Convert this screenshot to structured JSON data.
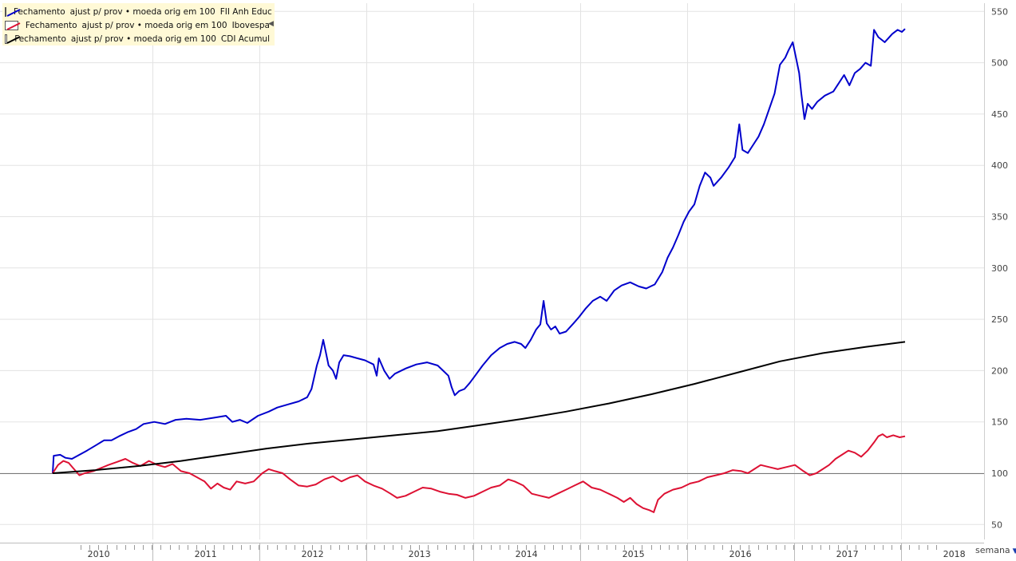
{
  "legend": {
    "items": [
      {
        "f1": "Fechamento",
        "f2": "ajust p/ prov • moeda orig em 100",
        "name": "FII Anh Educ",
        "color": "#0000cc"
      },
      {
        "f1": "Fechamento",
        "f2": "ajust p/ prov • moeda orig em 100",
        "name": "Ibovespa",
        "color": "#dd1133"
      },
      {
        "f1": "Fechamento",
        "f2": "ajust p/ prov • moeda orig em 100",
        "name": "CDI Acumul",
        "color": "#000000"
      }
    ],
    "collapse_icon": "triangle-left-icon"
  },
  "period": {
    "label": "semana",
    "icon": "triangle-down-icon"
  },
  "chart_data": {
    "type": "line",
    "x_unit": "year (decimal)",
    "xlim": [
      2009.55,
      2018.8
    ],
    "ylim": [
      35,
      555
    ],
    "yticks": [
      50,
      100,
      150,
      200,
      250,
      300,
      350,
      400,
      450,
      500,
      550
    ],
    "baseline": 100,
    "grid": true,
    "x_labels": [
      {
        "label": "2010",
        "x": 2009.83
      },
      {
        "label": "2011",
        "x": 2010.83
      },
      {
        "label": "2012",
        "x": 2011.83
      },
      {
        "label": "2013",
        "x": 2012.83
      },
      {
        "label": "2014",
        "x": 2013.83
      },
      {
        "label": "2015",
        "x": 2014.83
      },
      {
        "label": "2016",
        "x": 2015.83
      },
      {
        "label": "2017",
        "x": 2016.83
      },
      {
        "label": "2018",
        "x": 2017.83
      }
    ],
    "year_boundaries": [
      2010.33,
      2011.33,
      2012.33,
      2013.33,
      2014.33,
      2015.33,
      2016.33,
      2017.33
    ],
    "series": [
      {
        "name": "FII Anh Educ",
        "color": "#0000cc",
        "points": [
          [
            2009.4,
            100
          ],
          [
            2009.41,
            117
          ],
          [
            2009.47,
            118
          ],
          [
            2009.52,
            115
          ],
          [
            2009.58,
            114
          ],
          [
            2009.65,
            118
          ],
          [
            2009.72,
            122
          ],
          [
            2009.8,
            127
          ],
          [
            2009.88,
            132
          ],
          [
            2009.95,
            132
          ],
          [
            2010.02,
            136
          ],
          [
            2010.1,
            140
          ],
          [
            2010.18,
            143
          ],
          [
            2010.25,
            148
          ],
          [
            2010.35,
            150
          ],
          [
            2010.45,
            148
          ],
          [
            2010.55,
            152
          ],
          [
            2010.65,
            153
          ],
          [
            2010.78,
            152
          ],
          [
            2010.9,
            154
          ],
          [
            2011.02,
            156
          ],
          [
            2011.08,
            150
          ],
          [
            2011.15,
            152
          ],
          [
            2011.22,
            149
          ],
          [
            2011.32,
            156
          ],
          [
            2011.42,
            160
          ],
          [
            2011.5,
            164
          ],
          [
            2011.6,
            167
          ],
          [
            2011.7,
            170
          ],
          [
            2011.78,
            174
          ],
          [
            2011.82,
            182
          ],
          [
            2011.87,
            205
          ],
          [
            2011.9,
            215
          ],
          [
            2011.93,
            230
          ],
          [
            2011.95,
            220
          ],
          [
            2011.98,
            205
          ],
          [
            2012.02,
            200
          ],
          [
            2012.05,
            192
          ],
          [
            2012.08,
            208
          ],
          [
            2012.12,
            215
          ],
          [
            2012.18,
            214
          ],
          [
            2012.25,
            212
          ],
          [
            2012.32,
            210
          ],
          [
            2012.4,
            206
          ],
          [
            2012.43,
            195
          ],
          [
            2012.45,
            212
          ],
          [
            2012.5,
            200
          ],
          [
            2012.55,
            192
          ],
          [
            2012.6,
            197
          ],
          [
            2012.7,
            202
          ],
          [
            2012.8,
            206
          ],
          [
            2012.9,
            208
          ],
          [
            2013.0,
            205
          ],
          [
            2013.05,
            200
          ],
          [
            2013.1,
            195
          ],
          [
            2013.13,
            184
          ],
          [
            2013.16,
            176
          ],
          [
            2013.2,
            180
          ],
          [
            2013.25,
            182
          ],
          [
            2013.3,
            188
          ],
          [
            2013.35,
            195
          ],
          [
            2013.42,
            205
          ],
          [
            2013.5,
            215
          ],
          [
            2013.58,
            222
          ],
          [
            2013.65,
            226
          ],
          [
            2013.72,
            228
          ],
          [
            2013.78,
            226
          ],
          [
            2013.82,
            222
          ],
          [
            2013.87,
            230
          ],
          [
            2013.92,
            240
          ],
          [
            2013.96,
            245
          ],
          [
            2013.99,
            268
          ],
          [
            2014.02,
            246
          ],
          [
            2014.06,
            240
          ],
          [
            2014.1,
            243
          ],
          [
            2014.14,
            236
          ],
          [
            2014.2,
            238
          ],
          [
            2014.27,
            246
          ],
          [
            2014.32,
            252
          ],
          [
            2014.38,
            260
          ],
          [
            2014.45,
            268
          ],
          [
            2014.52,
            272
          ],
          [
            2014.58,
            268
          ],
          [
            2014.65,
            278
          ],
          [
            2014.72,
            283
          ],
          [
            2014.8,
            286
          ],
          [
            2014.88,
            282
          ],
          [
            2014.95,
            280
          ],
          [
            2015.03,
            284
          ],
          [
            2015.1,
            296
          ],
          [
            2015.15,
            310
          ],
          [
            2015.2,
            320
          ],
          [
            2015.25,
            332
          ],
          [
            2015.3,
            345
          ],
          [
            2015.35,
            355
          ],
          [
            2015.4,
            362
          ],
          [
            2015.45,
            380
          ],
          [
            2015.5,
            393
          ],
          [
            2015.55,
            388
          ],
          [
            2015.58,
            380
          ],
          [
            2015.65,
            388
          ],
          [
            2015.72,
            398
          ],
          [
            2015.78,
            408
          ],
          [
            2015.82,
            440
          ],
          [
            2015.85,
            415
          ],
          [
            2015.9,
            412
          ],
          [
            2015.95,
            420
          ],
          [
            2016.0,
            428
          ],
          [
            2016.05,
            440
          ],
          [
            2016.1,
            455
          ],
          [
            2016.15,
            470
          ],
          [
            2016.2,
            498
          ],
          [
            2016.25,
            505
          ],
          [
            2016.28,
            512
          ],
          [
            2016.32,
            520
          ],
          [
            2016.35,
            505
          ],
          [
            2016.38,
            490
          ],
          [
            2016.4,
            470
          ],
          [
            2016.43,
            445
          ],
          [
            2016.46,
            460
          ],
          [
            2016.5,
            455
          ],
          [
            2016.55,
            462
          ],
          [
            2016.62,
            468
          ],
          [
            2016.7,
            472
          ],
          [
            2016.75,
            480
          ],
          [
            2016.8,
            488
          ],
          [
            2016.85,
            478
          ],
          [
            2016.9,
            490
          ],
          [
            2016.95,
            494
          ],
          [
            2017.0,
            500
          ],
          [
            2017.05,
            497
          ],
          [
            2017.08,
            532
          ],
          [
            2017.12,
            525
          ],
          [
            2017.18,
            520
          ],
          [
            2017.25,
            528
          ],
          [
            2017.3,
            532
          ],
          [
            2017.34,
            530
          ],
          [
            2017.37,
            533
          ]
        ]
      },
      {
        "name": "Ibovespa",
        "color": "#dd1133",
        "points": [
          [
            2009.4,
            100
          ],
          [
            2009.45,
            108
          ],
          [
            2009.5,
            112
          ],
          [
            2009.55,
            110
          ],
          [
            2009.6,
            104
          ],
          [
            2009.65,
            98
          ],
          [
            2009.7,
            100
          ],
          [
            2009.78,
            102
          ],
          [
            2009.85,
            105
          ],
          [
            2009.92,
            108
          ],
          [
            2010.0,
            111
          ],
          [
            2010.08,
            114
          ],
          [
            2010.15,
            110
          ],
          [
            2010.22,
            107
          ],
          [
            2010.3,
            112
          ],
          [
            2010.38,
            108
          ],
          [
            2010.45,
            106
          ],
          [
            2010.52,
            109
          ],
          [
            2010.6,
            102
          ],
          [
            2010.68,
            100
          ],
          [
            2010.75,
            96
          ],
          [
            2010.82,
            92
          ],
          [
            2010.88,
            85
          ],
          [
            2010.94,
            90
          ],
          [
            2011.0,
            86
          ],
          [
            2011.06,
            84
          ],
          [
            2011.12,
            92
          ],
          [
            2011.2,
            90
          ],
          [
            2011.28,
            92
          ],
          [
            2011.36,
            100
          ],
          [
            2011.42,
            104
          ],
          [
            2011.48,
            102
          ],
          [
            2011.55,
            100
          ],
          [
            2011.62,
            94
          ],
          [
            2011.7,
            88
          ],
          [
            2011.78,
            87
          ],
          [
            2011.86,
            89
          ],
          [
            2011.94,
            94
          ],
          [
            2012.02,
            97
          ],
          [
            2012.1,
            92
          ],
          [
            2012.18,
            96
          ],
          [
            2012.25,
            98
          ],
          [
            2012.32,
            92
          ],
          [
            2012.4,
            88
          ],
          [
            2012.48,
            85
          ],
          [
            2012.56,
            80
          ],
          [
            2012.62,
            76
          ],
          [
            2012.7,
            78
          ],
          [
            2012.78,
            82
          ],
          [
            2012.86,
            86
          ],
          [
            2012.94,
            85
          ],
          [
            2013.02,
            82
          ],
          [
            2013.1,
            80
          ],
          [
            2013.18,
            79
          ],
          [
            2013.26,
            76
          ],
          [
            2013.34,
            78
          ],
          [
            2013.42,
            82
          ],
          [
            2013.5,
            86
          ],
          [
            2013.58,
            88
          ],
          [
            2013.66,
            94
          ],
          [
            2013.72,
            92
          ],
          [
            2013.8,
            88
          ],
          [
            2013.88,
            80
          ],
          [
            2013.96,
            78
          ],
          [
            2014.04,
            76
          ],
          [
            2014.12,
            80
          ],
          [
            2014.2,
            84
          ],
          [
            2014.28,
            88
          ],
          [
            2014.36,
            92
          ],
          [
            2014.44,
            86
          ],
          [
            2014.52,
            84
          ],
          [
            2014.6,
            80
          ],
          [
            2014.68,
            76
          ],
          [
            2014.74,
            72
          ],
          [
            2014.8,
            76
          ],
          [
            2014.86,
            70
          ],
          [
            2014.92,
            66
          ],
          [
            2014.98,
            64
          ],
          [
            2015.02,
            62
          ],
          [
            2015.06,
            74
          ],
          [
            2015.12,
            80
          ],
          [
            2015.2,
            84
          ],
          [
            2015.28,
            86
          ],
          [
            2015.36,
            90
          ],
          [
            2015.44,
            92
          ],
          [
            2015.52,
            96
          ],
          [
            2015.6,
            98
          ],
          [
            2015.68,
            100
          ],
          [
            2015.76,
            103
          ],
          [
            2015.84,
            102
          ],
          [
            2015.9,
            100
          ],
          [
            2015.96,
            104
          ],
          [
            2016.02,
            108
          ],
          [
            2016.1,
            106
          ],
          [
            2016.18,
            104
          ],
          [
            2016.26,
            106
          ],
          [
            2016.34,
            108
          ],
          [
            2016.42,
            102
          ],
          [
            2016.48,
            98
          ],
          [
            2016.54,
            100
          ],
          [
            2016.6,
            104
          ],
          [
            2016.66,
            108
          ],
          [
            2016.72,
            114
          ],
          [
            2016.78,
            118
          ],
          [
            2016.84,
            122
          ],
          [
            2016.9,
            120
          ],
          [
            2016.96,
            116
          ],
          [
            2017.02,
            122
          ],
          [
            2017.08,
            130
          ],
          [
            2017.12,
            136
          ],
          [
            2017.16,
            138
          ],
          [
            2017.2,
            135
          ],
          [
            2017.26,
            137
          ],
          [
            2017.32,
            135
          ],
          [
            2017.37,
            136
          ]
        ]
      },
      {
        "name": "CDI Acumul",
        "color": "#000000",
        "points": [
          [
            2009.4,
            100
          ],
          [
            2009.8,
            103
          ],
          [
            2010.2,
            107
          ],
          [
            2010.6,
            112
          ],
          [
            2011.0,
            118
          ],
          [
            2011.4,
            124
          ],
          [
            2011.8,
            129
          ],
          [
            2012.2,
            133
          ],
          [
            2012.6,
            137
          ],
          [
            2013.0,
            141
          ],
          [
            2013.4,
            147
          ],
          [
            2013.8,
            153
          ],
          [
            2014.2,
            160
          ],
          [
            2014.6,
            168
          ],
          [
            2015.0,
            177
          ],
          [
            2015.4,
            187
          ],
          [
            2015.8,
            198
          ],
          [
            2016.2,
            209
          ],
          [
            2016.6,
            217
          ],
          [
            2017.0,
            223
          ],
          [
            2017.37,
            228
          ]
        ]
      }
    ]
  }
}
